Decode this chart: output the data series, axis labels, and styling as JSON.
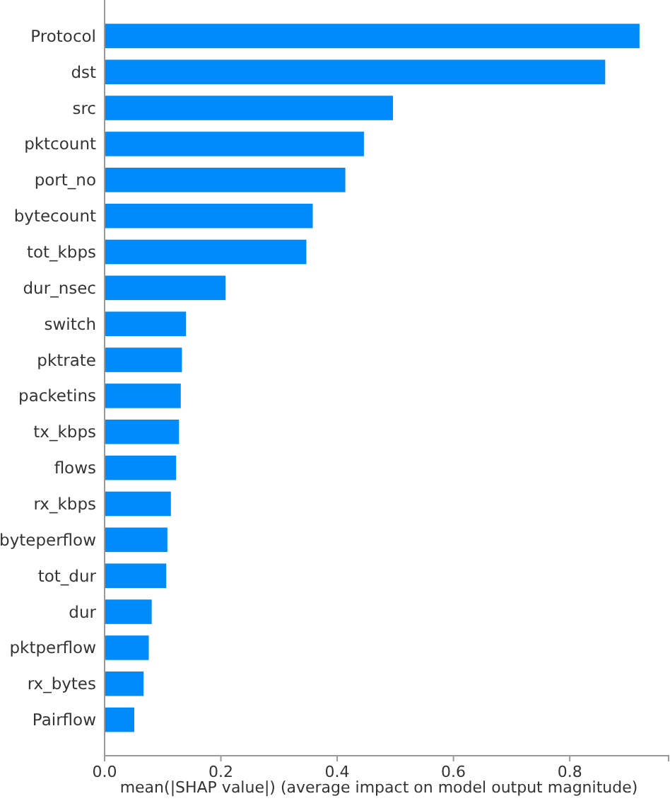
{
  "chart_data": {
    "type": "bar",
    "orientation": "horizontal",
    "xlabel": "mean(|SHAP value|) (average impact on model output magnitude)",
    "categories": [
      "Protocol",
      "dst",
      "src",
      "pktcount",
      "port_no",
      "bytecount",
      "tot_kbps",
      "dur_nsec",
      "switch",
      "pktrate",
      "packetins",
      "tx_kbps",
      "flows",
      "rx_kbps",
      "byteperflow",
      "tot_dur",
      "dur",
      "pktperflow",
      "rx_bytes",
      "Pairflow"
    ],
    "values": [
      0.92,
      0.861,
      0.496,
      0.446,
      0.414,
      0.358,
      0.347,
      0.208,
      0.14,
      0.133,
      0.131,
      0.128,
      0.123,
      0.114,
      0.108,
      0.106,
      0.081,
      0.076,
      0.067,
      0.051
    ],
    "color": "#008bfb",
    "xlim": [
      0,
      0.97
    ],
    "xticks": [
      {
        "value": 0,
        "label": "0.0"
      },
      {
        "value": 0.2,
        "label": "0.2"
      },
      {
        "value": 0.4,
        "label": "0.4"
      },
      {
        "value": 0.6,
        "label": "0.6"
      },
      {
        "value": 0.8,
        "label": "0.8"
      }
    ],
    "grid": false
  }
}
